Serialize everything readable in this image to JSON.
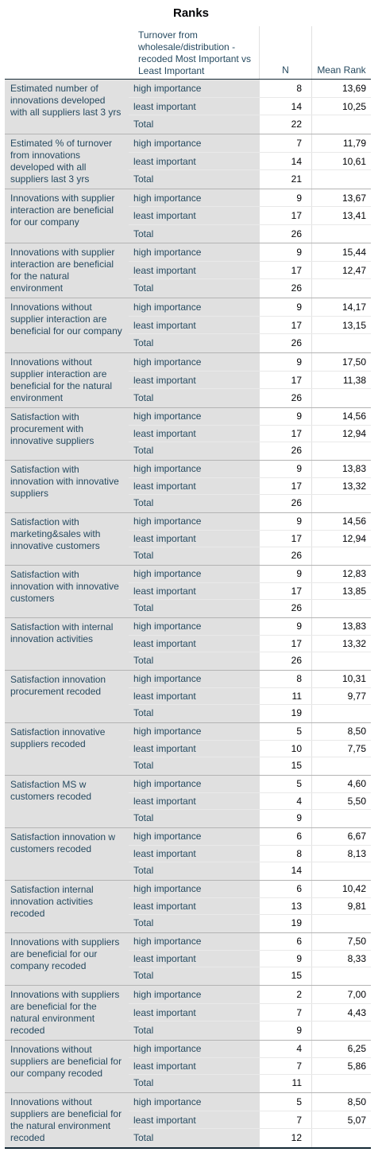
{
  "table": {
    "title": "Ranks",
    "header": {
      "group_col": "Turnover from wholesale/distribution - recoded Most Important vs Least Important",
      "n_col": "N",
      "mean_rank_col": "Mean Rank"
    },
    "blocks": [
      {
        "label": "Estimated number of innovations developed with all suppliers last 3 yrs",
        "rows": [
          {
            "group": "high importance",
            "n": "8",
            "mean_rank": "13,69"
          },
          {
            "group": "least important",
            "n": "14",
            "mean_rank": "10,25"
          },
          {
            "group": "Total",
            "n": "22",
            "mean_rank": ""
          }
        ]
      },
      {
        "label": "Estimated % of turnover from innovations developed with all suppliers last 3 yrs",
        "rows": [
          {
            "group": "high importance",
            "n": "7",
            "mean_rank": "11,79"
          },
          {
            "group": "least important",
            "n": "14",
            "mean_rank": "10,61"
          },
          {
            "group": "Total",
            "n": "21",
            "mean_rank": ""
          }
        ]
      },
      {
        "label": "Innovations with supplier interaction are beneficial for our company",
        "rows": [
          {
            "group": "high importance",
            "n": "9",
            "mean_rank": "13,67"
          },
          {
            "group": "least important",
            "n": "17",
            "mean_rank": "13,41"
          },
          {
            "group": "Total",
            "n": "26",
            "mean_rank": ""
          }
        ]
      },
      {
        "label": "Innovations with supplier interaction are beneficial for the natural environment",
        "rows": [
          {
            "group": "high importance",
            "n": "9",
            "mean_rank": "15,44"
          },
          {
            "group": "least important",
            "n": "17",
            "mean_rank": "12,47"
          },
          {
            "group": "Total",
            "n": "26",
            "mean_rank": ""
          }
        ]
      },
      {
        "label": "Innovations without supplier interaction are beneficial for our company",
        "rows": [
          {
            "group": "high importance",
            "n": "9",
            "mean_rank": "14,17"
          },
          {
            "group": "least important",
            "n": "17",
            "mean_rank": "13,15"
          },
          {
            "group": "Total",
            "n": "26",
            "mean_rank": ""
          }
        ]
      },
      {
        "label": "Innovations without supplier interaction are beneficial for the natural environment",
        "rows": [
          {
            "group": "high importance",
            "n": "9",
            "mean_rank": "17,50"
          },
          {
            "group": "least important",
            "n": "17",
            "mean_rank": "11,38"
          },
          {
            "group": "Total",
            "n": "26",
            "mean_rank": ""
          }
        ]
      },
      {
        "label": "Satisfaction with procurement with innovative suppliers",
        "rows": [
          {
            "group": "high importance",
            "n": "9",
            "mean_rank": "14,56"
          },
          {
            "group": "least important",
            "n": "17",
            "mean_rank": "12,94"
          },
          {
            "group": "Total",
            "n": "26",
            "mean_rank": ""
          }
        ]
      },
      {
        "label": "Satisfaction with innovation with innovative suppliers",
        "rows": [
          {
            "group": "high importance",
            "n": "9",
            "mean_rank": "13,83"
          },
          {
            "group": "least important",
            "n": "17",
            "mean_rank": "13,32"
          },
          {
            "group": "Total",
            "n": "26",
            "mean_rank": ""
          }
        ]
      },
      {
        "label": "Satisfaction with marketing&sales with innovative customers",
        "rows": [
          {
            "group": "high importance",
            "n": "9",
            "mean_rank": "14,56"
          },
          {
            "group": "least important",
            "n": "17",
            "mean_rank": "12,94"
          },
          {
            "group": "Total",
            "n": "26",
            "mean_rank": ""
          }
        ]
      },
      {
        "label": "Satisfaction with innovation with innovative customers",
        "rows": [
          {
            "group": "high importance",
            "n": "9",
            "mean_rank": "12,83"
          },
          {
            "group": "least important",
            "n": "17",
            "mean_rank": "13,85"
          },
          {
            "group": "Total",
            "n": "26",
            "mean_rank": ""
          }
        ]
      },
      {
        "label": "Satisfaction with internal innovation activities",
        "rows": [
          {
            "group": "high importance",
            "n": "9",
            "mean_rank": "13,83"
          },
          {
            "group": "least important",
            "n": "17",
            "mean_rank": "13,32"
          },
          {
            "group": "Total",
            "n": "26",
            "mean_rank": ""
          }
        ]
      },
      {
        "label": "Satisfaction innovation procurement recoded",
        "rows": [
          {
            "group": "high importance",
            "n": "8",
            "mean_rank": "10,31"
          },
          {
            "group": "least important",
            "n": "11",
            "mean_rank": "9,77"
          },
          {
            "group": "Total",
            "n": "19",
            "mean_rank": ""
          }
        ]
      },
      {
        "label": "Satisfaction innovative suppliers recoded",
        "rows": [
          {
            "group": "high importance",
            "n": "5",
            "mean_rank": "8,50"
          },
          {
            "group": "least important",
            "n": "10",
            "mean_rank": "7,75"
          },
          {
            "group": "Total",
            "n": "15",
            "mean_rank": ""
          }
        ]
      },
      {
        "label": "Satisfaction MS w customers recoded",
        "rows": [
          {
            "group": "high importance",
            "n": "5",
            "mean_rank": "4,60"
          },
          {
            "group": "least important",
            "n": "4",
            "mean_rank": "5,50"
          },
          {
            "group": "Total",
            "n": "9",
            "mean_rank": ""
          }
        ]
      },
      {
        "label": "Satisfaction innovation w customers recoded",
        "rows": [
          {
            "group": "high importance",
            "n": "6",
            "mean_rank": "6,67"
          },
          {
            "group": "least important",
            "n": "8",
            "mean_rank": "8,13"
          },
          {
            "group": "Total",
            "n": "14",
            "mean_rank": ""
          }
        ]
      },
      {
        "label": "Satisfaction internal innovation activities recoded",
        "rows": [
          {
            "group": "high importance",
            "n": "6",
            "mean_rank": "10,42"
          },
          {
            "group": "least important",
            "n": "13",
            "mean_rank": "9,81"
          },
          {
            "group": "Total",
            "n": "19",
            "mean_rank": ""
          }
        ]
      },
      {
        "label": "Innovations with suppliers are beneficial for our company recoded",
        "rows": [
          {
            "group": "high importance",
            "n": "6",
            "mean_rank": "7,50"
          },
          {
            "group": "least important",
            "n": "9",
            "mean_rank": "8,33"
          },
          {
            "group": "Total",
            "n": "15",
            "mean_rank": ""
          }
        ]
      },
      {
        "label": "Innovations with suppliers are beneficial for the natural environment recoded",
        "rows": [
          {
            "group": "high importance",
            "n": "2",
            "mean_rank": "7,00"
          },
          {
            "group": "least important",
            "n": "7",
            "mean_rank": "4,43"
          },
          {
            "group": "Total",
            "n": "9",
            "mean_rank": ""
          }
        ]
      },
      {
        "label": "Innovations without suppliers are beneficial for our company recoded",
        "rows": [
          {
            "group": "high importance",
            "n": "4",
            "mean_rank": "6,25"
          },
          {
            "group": "least important",
            "n": "7",
            "mean_rank": "5,86"
          },
          {
            "group": "Total",
            "n": "11",
            "mean_rank": ""
          }
        ]
      },
      {
        "label": "Innovations without suppliers are beneficial for the natural environment recoded",
        "rows": [
          {
            "group": "high importance",
            "n": "5",
            "mean_rank": "8,50"
          },
          {
            "group": "least important",
            "n": "7",
            "mean_rank": "5,07"
          },
          {
            "group": "Total",
            "n": "12",
            "mean_rank": ""
          }
        ]
      }
    ]
  }
}
